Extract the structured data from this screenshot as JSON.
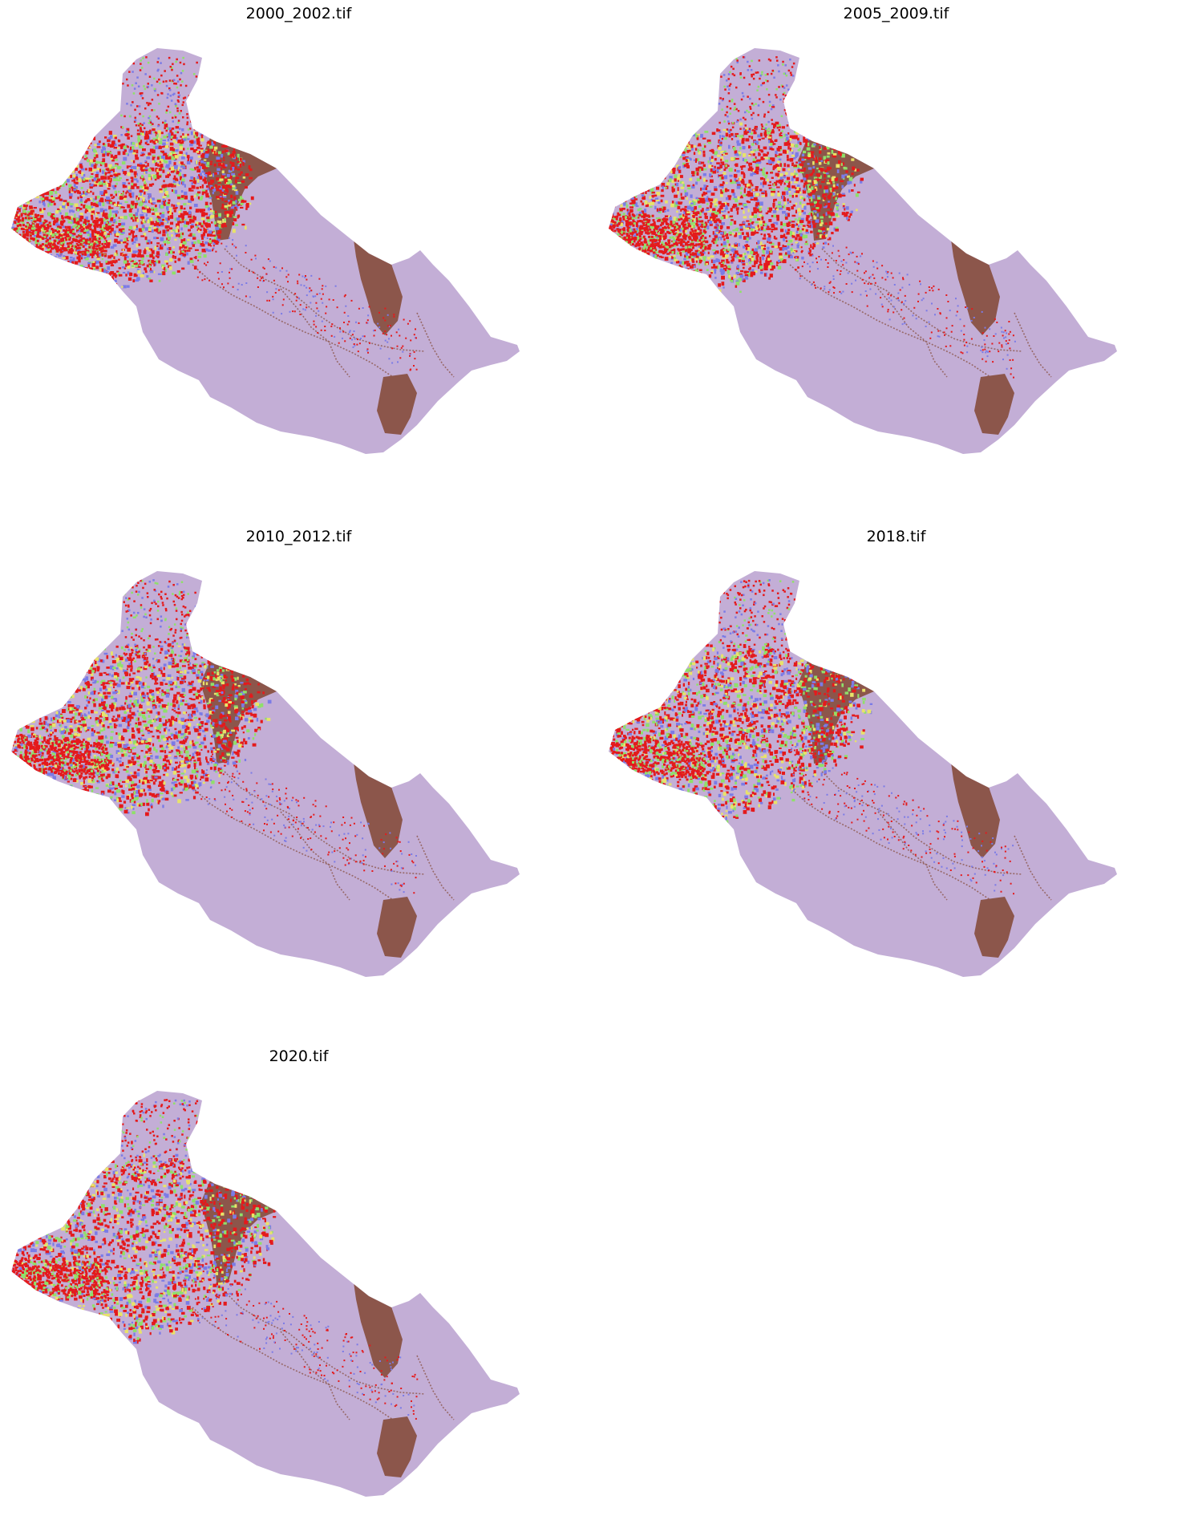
{
  "figure": {
    "panels": [
      {
        "title": "2000_2002.tif",
        "seed": 11,
        "spread": 1.0
      },
      {
        "title": "2005_2009.tif",
        "seed": 23,
        "spread": 1.05
      },
      {
        "title": "2010_2012.tif",
        "seed": 37,
        "spread": 1.08
      },
      {
        "title": "2018.tif",
        "seed": 41,
        "spread": 1.12
      },
      {
        "title": "2020.tif",
        "seed": 53,
        "spread": 1.18
      }
    ],
    "colors": {
      "background_class": "#c3aed6",
      "class_brown": "#8c564b",
      "class_red": "#e41a1c",
      "class_green": "#8fe06a",
      "class_blue": "#7b7be6",
      "class_yellow": "#e8e36a"
    }
  }
}
